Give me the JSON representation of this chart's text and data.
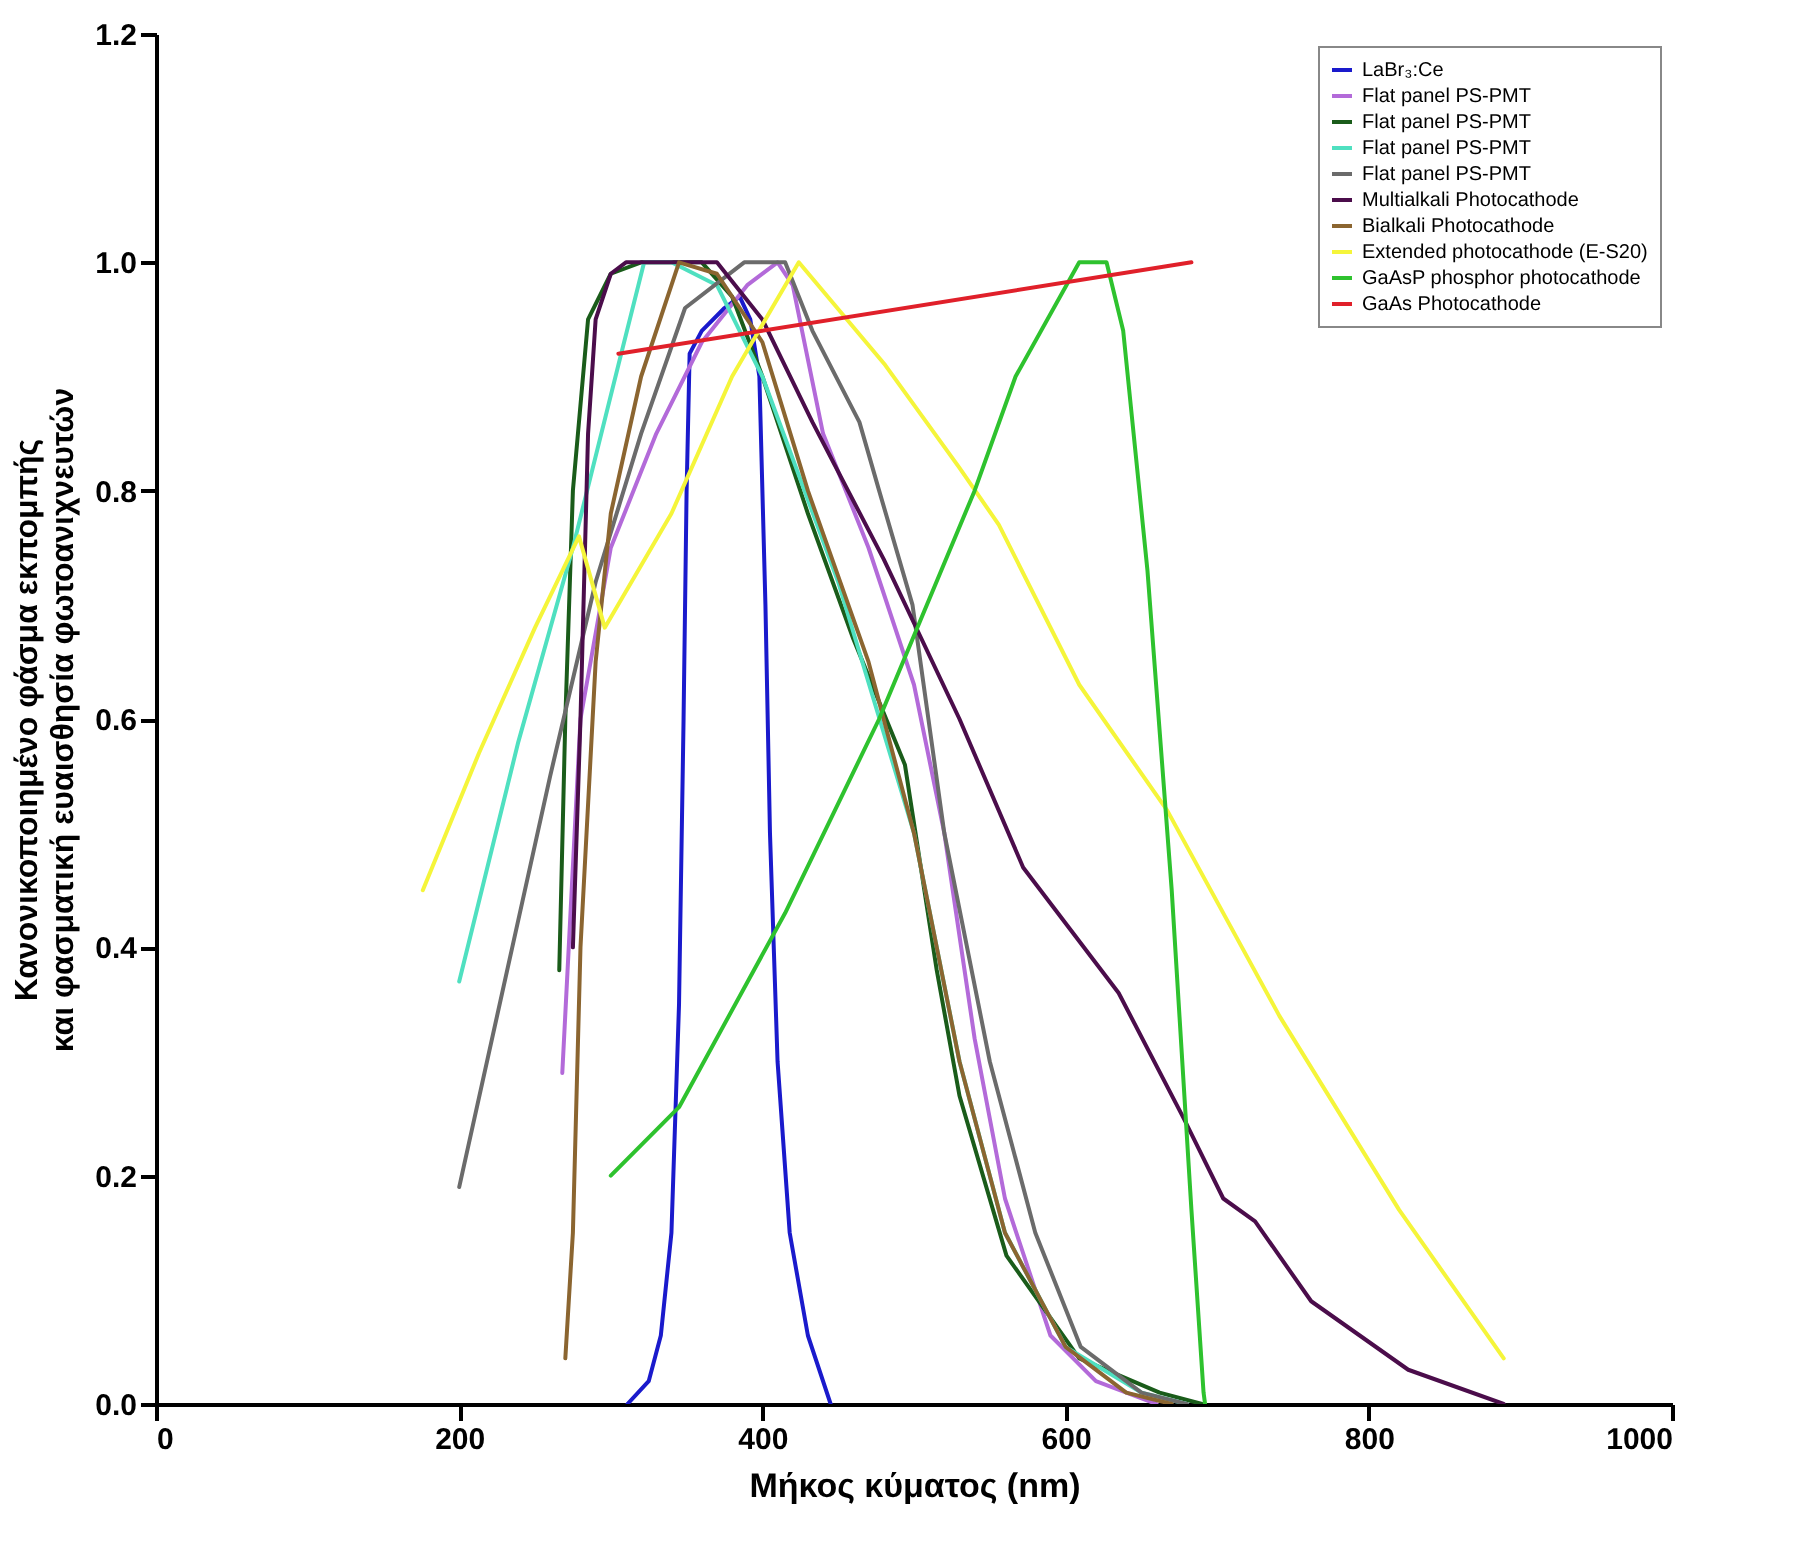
{
  "chart_data": {
    "type": "line",
    "xlabel": "Μήκος κύματος (nm)",
    "ylabel": "Κανονικοποιημένο φάσμα εκπομπής\nκαι φασματική ευαισθησία φωτοανιχνευτών",
    "xlim": [
      0,
      1000
    ],
    "xticks": [
      0,
      200,
      400,
      600,
      800,
      1000
    ],
    "ylim": [
      0,
      1.2
    ],
    "yticks": [
      {
        "value": 0,
        "label": "0.0"
      },
      {
        "value": 0.2,
        "label": "0.2"
      },
      {
        "value": 0.4,
        "label": "0.4"
      },
      {
        "value": 0.6,
        "label": "0.6"
      },
      {
        "value": 0.8,
        "label": "0.8"
      },
      {
        "value": 1,
        "label": "1.0"
      },
      {
        "value": 1.2,
        "label": "1.2"
      }
    ],
    "grid": false,
    "legend": "top right",
    "line_style": "solid",
    "series": [
      {
        "name": "LaBr₃:Ce",
        "color": "#1a1acc",
        "x": [
          311,
          325,
          333,
          340,
          345,
          348,
          350,
          352,
          360,
          375,
          385,
          392,
          398,
          402,
          405,
          410,
          418,
          430,
          445
        ],
        "values": [
          0,
          0.02,
          0.06,
          0.15,
          0.35,
          0.6,
          0.8,
          0.92,
          0.94,
          0.96,
          0.97,
          0.95,
          0.9,
          0.7,
          0.5,
          0.3,
          0.15,
          0.06,
          0
        ]
      },
      {
        "name": "Flat panel PS-PMT",
        "color": "#b36ad9",
        "x": [
          268,
          280,
          300,
          330,
          360,
          390,
          410,
          420,
          440,
          470,
          500,
          520,
          540,
          560,
          590,
          620,
          660
        ],
        "values": [
          0.29,
          0.6,
          0.75,
          0.85,
          0.93,
          0.98,
          1.0,
          0.98,
          0.85,
          0.75,
          0.63,
          0.5,
          0.32,
          0.18,
          0.06,
          0.02,
          0
        ]
      },
      {
        "name": "Flat panel PS-PMT",
        "color": "#1a5c1a",
        "x": [
          266,
          270,
          275,
          285,
          300,
          320,
          360,
          380,
          400,
          430,
          460,
          494,
          515,
          530,
          561,
          609,
          662,
          690
        ],
        "values": [
          0.38,
          0.6,
          0.8,
          0.95,
          0.99,
          1.0,
          1.0,
          0.97,
          0.9,
          0.78,
          0.67,
          0.56,
          0.38,
          0.27,
          0.13,
          0.04,
          0.01,
          0
        ]
      },
      {
        "name": "Flat panel PS-PMT",
        "color": "#4fe0c0",
        "x": [
          200,
          239,
          275,
          305,
          322,
          340,
          370,
          400,
          450,
          500,
          530,
          560,
          600,
          650,
          680
        ],
        "values": [
          0.37,
          0.58,
          0.75,
          0.91,
          1.0,
          1.0,
          0.98,
          0.9,
          0.72,
          0.5,
          0.3,
          0.15,
          0.05,
          0.01,
          0
        ]
      },
      {
        "name": "Flat panel PS-PMT",
        "color": "#6b6b6b",
        "x": [
          200,
          235,
          260,
          290,
          320,
          349,
          388,
          415,
          433,
          464,
          477,
          499,
          520,
          550,
          580,
          610,
          650,
          680
        ],
        "values": [
          0.19,
          0.4,
          0.55,
          0.72,
          0.85,
          0.96,
          1.0,
          1.0,
          0.94,
          0.86,
          0.8,
          0.7,
          0.5,
          0.3,
          0.15,
          0.05,
          0.01,
          0
        ]
      },
      {
        "name": "Multialkali Photocathode",
        "color": "#4b0d4b",
        "x": [
          275,
          280,
          285,
          290,
          300,
          310,
          370,
          400,
          433,
          480,
          530,
          572,
          635,
          678,
          704,
          725,
          762,
          826,
          889
        ],
        "values": [
          0.4,
          0.6,
          0.85,
          0.95,
          0.99,
          1.0,
          1.0,
          0.95,
          0.86,
          0.74,
          0.6,
          0.47,
          0.36,
          0.25,
          0.18,
          0.16,
          0.09,
          0.03,
          0
        ]
      },
      {
        "name": "Bialkali Photocathode",
        "color": "#8b6530",
        "x": [
          270,
          275,
          280,
          290,
          300,
          320,
          345,
          370,
          400,
          430,
          470,
          500,
          530,
          560,
          600,
          640,
          670
        ],
        "values": [
          0.04,
          0.15,
          0.4,
          0.65,
          0.78,
          0.9,
          1.0,
          0.99,
          0.93,
          0.8,
          0.65,
          0.5,
          0.3,
          0.15,
          0.05,
          0.01,
          0
        ]
      },
      {
        "name": "Extended photocathode (E-S20)",
        "color": "#f5f53a",
        "x": [
          176,
          213,
          250,
          279,
          296,
          340,
          380,
          424,
          481,
          530,
          556,
          609,
          667,
          741,
          820,
          889
        ],
        "values": [
          0.45,
          0.57,
          0.68,
          0.76,
          0.68,
          0.78,
          0.9,
          1.0,
          0.91,
          0.82,
          0.77,
          0.63,
          0.52,
          0.34,
          0.17,
          0.04
        ]
      },
      {
        "name": "GaAsP phosphor photocathode",
        "color": "#2ec22e",
        "x": [
          300,
          345,
          415,
          477,
          540,
          567,
          609,
          627,
          638,
          654,
          670,
          683,
          691,
          692
        ],
        "values": [
          0.2,
          0.26,
          0.43,
          0.6,
          0.8,
          0.9,
          1.0,
          1.0,
          0.94,
          0.73,
          0.45,
          0.17,
          0.01,
          0
        ]
      },
      {
        "name": "GaAs Photocathode",
        "color": "#e0202a",
        "x": [
          305,
          683
        ],
        "values": [
          0.92,
          1.0
        ]
      }
    ]
  }
}
